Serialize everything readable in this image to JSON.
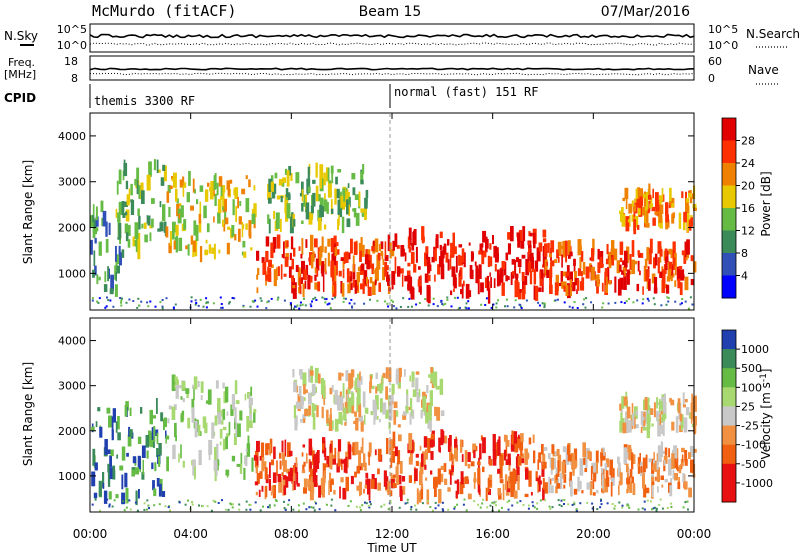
{
  "header": {
    "site": "McMurdo (fitACF)",
    "beam": "Beam 15",
    "date": "07/Mar/2016"
  },
  "top_panels": {
    "nsky_label": "N.Sky",
    "nsky_ticks": [
      "10^5",
      "10^0"
    ],
    "nsearch_label": "N.Search",
    "nsearch_ticks": [
      "10^5",
      "10^0"
    ],
    "freq_label": "Freq.",
    "freq_unit": "[MHz]",
    "freq_ticks": [
      "18",
      "8"
    ],
    "nave_label": "Nave",
    "nave_ticks": [
      "60",
      "0"
    ],
    "cpid_label": "CPID",
    "cpid_modes": [
      {
        "name": "themis 3300 RF",
        "start_hour": 0
      },
      {
        "name": "normal (fast) 151 RF",
        "start_hour": 12
      }
    ]
  },
  "x_axis": {
    "label": "Time UT",
    "range_hours": [
      0,
      24
    ],
    "ticks": [
      "00:00",
      "04:00",
      "08:00",
      "12:00",
      "16:00",
      "20:00",
      "00:00"
    ]
  },
  "chart_data": [
    {
      "type": "heatmap",
      "name": "power",
      "ylabel": "Slant Range [km]",
      "yticks": [
        "1000",
        "2000",
        "3000",
        "4000"
      ],
      "ylim": [
        200,
        4500
      ],
      "colorbar": {
        "label": "Power [dB]",
        "ticks": [
          "4",
          "8",
          "12",
          "16",
          "20",
          "24",
          "28"
        ],
        "colors": [
          "#0000ff",
          "#3050b8",
          "#3a8a5a",
          "#66bb44",
          "#e8c800",
          "#f08000",
          "#ff3000",
          "#e00000"
        ]
      },
      "bands": [
        {
          "hours": [
            0,
            1.2
          ],
          "range_km": [
            600,
            2600
          ],
          "level": 2
        },
        {
          "hours": [
            1,
            3
          ],
          "range_km": [
            1300,
            3400
          ],
          "level": 3
        },
        {
          "hours": [
            3,
            6.5
          ],
          "range_km": [
            1400,
            3100
          ],
          "level": 4
        },
        {
          "hours": [
            6.5,
            12
          ],
          "range_km": [
            600,
            1700
          ],
          "level": 6
        },
        {
          "hours": [
            12,
            18
          ],
          "range_km": [
            500,
            1900
          ],
          "level": 7
        },
        {
          "hours": [
            18,
            24
          ],
          "range_km": [
            600,
            1600
          ],
          "level": 6
        },
        {
          "hours": [
            7,
            11
          ],
          "range_km": [
            2000,
            3300
          ],
          "level": 3
        },
        {
          "hours": [
            21,
            24
          ],
          "range_km": [
            2000,
            2800
          ],
          "level": 5
        }
      ]
    },
    {
      "type": "heatmap",
      "name": "velocity",
      "ylabel": "Slant Range [km]",
      "yticks": [
        "1000",
        "2000",
        "3000",
        "4000"
      ],
      "ylim": [
        200,
        4500
      ],
      "colorbar": {
        "label": "Velocity [m s^-1]",
        "ticks": [
          "1000",
          "500",
          "100",
          "25",
          "-25",
          "-100",
          "-500",
          "-1000"
        ],
        "colors": [
          "#2040b0",
          "#3a8a5a",
          "#66bb44",
          "#a8d870",
          "#c8c8c8",
          "#f09040",
          "#f06010",
          "#e81010"
        ]
      },
      "bands": [
        {
          "hours": [
            0,
            3
          ],
          "range_km": [
            500,
            2600
          ],
          "level": 1
        },
        {
          "hours": [
            3,
            6.5
          ],
          "range_km": [
            1000,
            3100
          ],
          "level": 3
        },
        {
          "hours": [
            6.5,
            12
          ],
          "range_km": [
            600,
            1700
          ],
          "level": 6
        },
        {
          "hours": [
            12,
            18
          ],
          "range_km": [
            500,
            1900
          ],
          "level": 6
        },
        {
          "hours": [
            18,
            24
          ],
          "range_km": [
            600,
            1600
          ],
          "level": 5
        },
        {
          "hours": [
            8,
            14
          ],
          "range_km": [
            2100,
            3300
          ],
          "level": 4
        },
        {
          "hours": [
            21,
            24
          ],
          "range_km": [
            2000,
            2700
          ],
          "level": 4
        }
      ]
    }
  ]
}
